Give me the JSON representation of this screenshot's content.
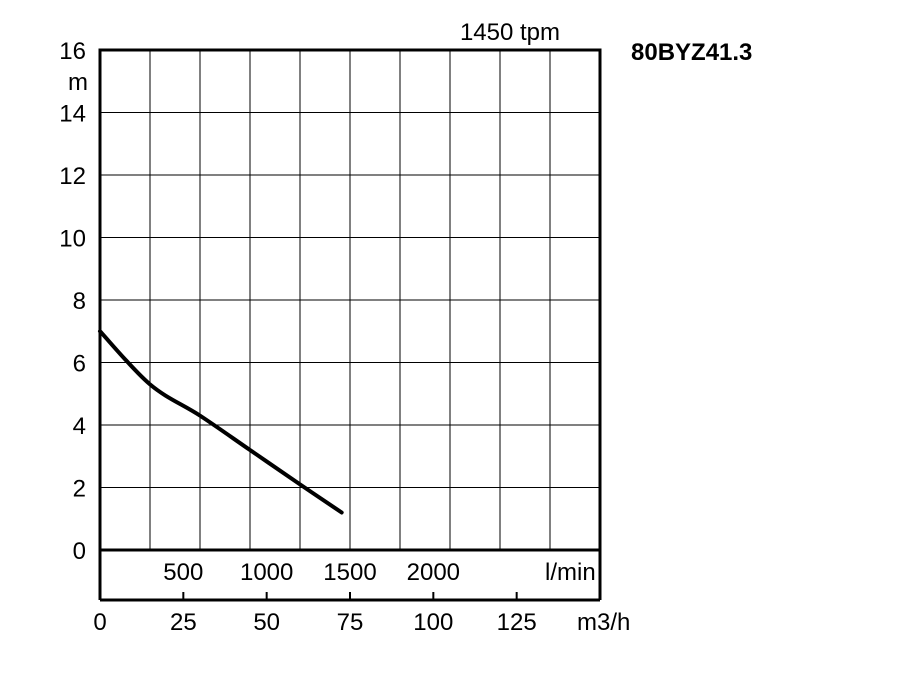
{
  "chart_data": {
    "type": "line",
    "title": "80BYZ41.3",
    "subtitle": "1450 tpm",
    "y_unit": "m",
    "x_unit_lmin": "l/min",
    "x_unit_m3h": "m3/h",
    "ylim": [
      0,
      16
    ],
    "xlim_lmin": [
      0,
      3000
    ],
    "xlim_m3h": [
      0,
      150
    ],
    "grid": true,
    "y_ticks": [
      "0",
      "2",
      "4",
      "6",
      "8",
      "10",
      "12",
      "14",
      "16"
    ],
    "x_ticks_lmin": [
      {
        "value": 500,
        "label": "500"
      },
      {
        "value": 1000,
        "label": "1000"
      },
      {
        "value": 1500,
        "label": "1500"
      },
      {
        "value": 2000,
        "label": "2000"
      }
    ],
    "x_ticks_m3h": [
      {
        "value": 0,
        "label": "0"
      },
      {
        "value": 25,
        "label": "25"
      },
      {
        "value": 50,
        "label": "50"
      },
      {
        "value": 75,
        "label": "75"
      },
      {
        "value": 100,
        "label": "100"
      },
      {
        "value": 125,
        "label": "125"
      }
    ],
    "series": [
      {
        "x_lmin": [
          0,
          300,
          600,
          900,
          1200,
          1450
        ],
        "y": [
          7.0,
          5.3,
          4.3,
          3.2,
          2.1,
          1.2
        ]
      }
    ]
  }
}
